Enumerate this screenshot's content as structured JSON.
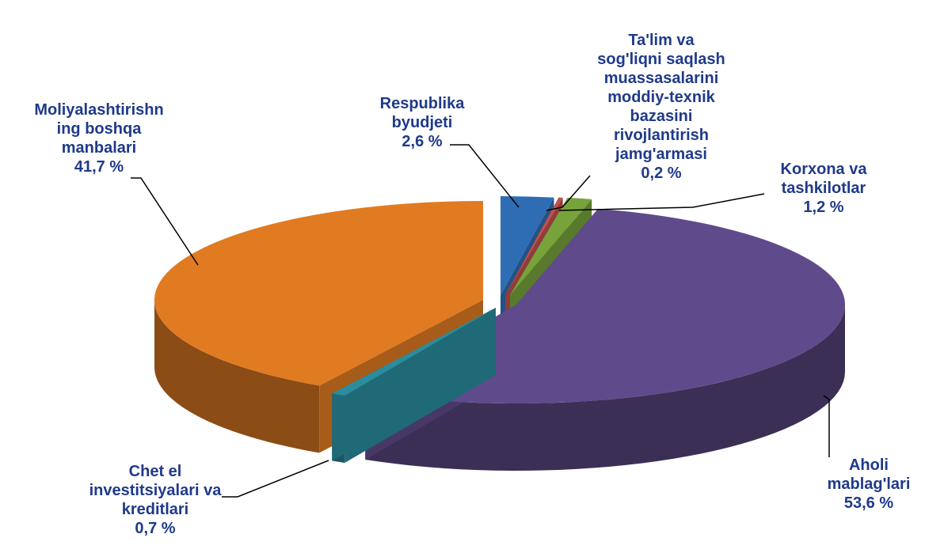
{
  "chart_data": {
    "type": "pie3d",
    "categories": [
      "Respublika\nbyudjeti",
      "Ta'lim va\nsog'liqni saqlash\nmuassasalarini\nmoddiy-texnik\nbazasini\nrivojlantirish\njamg'armasi",
      "Korxona va\ntashkilotlar",
      "Aholi mablag'lari",
      "Chet el\ninvestitsiyalari va\nkreditlari",
      "Moliyalashtirishn\ning boshqa\nmanbalari"
    ],
    "values": [
      2.6,
      0.2,
      1.2,
      53.6,
      0.7,
      41.7
    ],
    "value_labels": [
      "2,6 %",
      "0,2 %",
      "1,2 %",
      "53,6 %",
      "0,7 %",
      "41,7 %"
    ],
    "colors": [
      "#2e6db4",
      "#c0504d",
      "#77a33b",
      "#5f4b8b",
      "#2b8c9e",
      "#e07b22"
    ]
  }
}
